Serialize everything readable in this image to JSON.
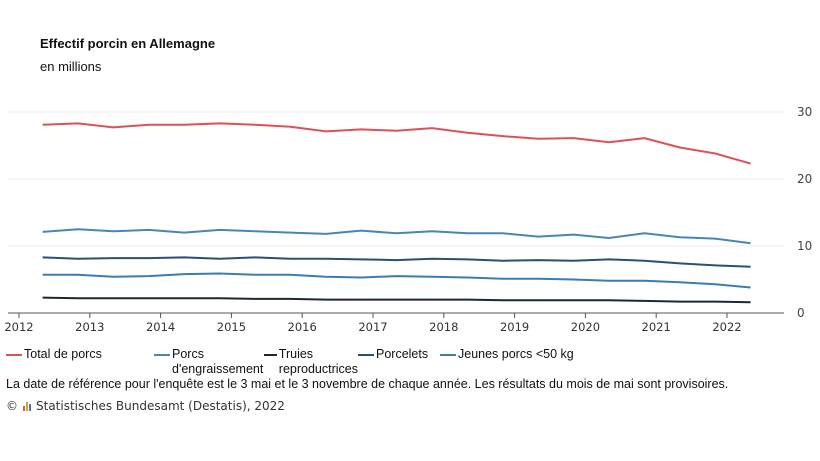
{
  "chart_data": {
    "type": "line",
    "title": "Effectif porcin en Allemagne",
    "subtitle": "en millions",
    "x": [
      "2012-05",
      "2012-11",
      "2013-05",
      "2013-11",
      "2014-05",
      "2014-11",
      "2015-05",
      "2015-11",
      "2016-05",
      "2016-11",
      "2017-05",
      "2017-11",
      "2018-05",
      "2018-11",
      "2019-05",
      "2019-11",
      "2020-05",
      "2020-11",
      "2021-05",
      "2021-11",
      "2022-05"
    ],
    "xticks": [
      "2012",
      "2013",
      "2014",
      "2015",
      "2016",
      "2017",
      "2018",
      "2019",
      "2020",
      "2021",
      "2022"
    ],
    "yticks": [
      "0",
      "10",
      "20",
      "30"
    ],
    "ylim": [
      0,
      30
    ],
    "grid": true,
    "y_axis_position": "right",
    "legend_position": "bottom",
    "series": [
      {
        "name": "Total de porcs",
        "color": "#d9545a",
        "values": [
          28.1,
          28.3,
          27.7,
          28.1,
          28.1,
          28.3,
          28.1,
          27.8,
          27.1,
          27.4,
          27.2,
          27.6,
          26.9,
          26.4,
          26.0,
          26.1,
          25.5,
          26.1,
          24.7,
          23.8,
          22.3
        ]
      },
      {
        "name": "Porcs d'engraissement",
        "color": "#4a86b4",
        "values": [
          12.1,
          12.5,
          12.2,
          12.4,
          12.0,
          12.4,
          12.2,
          12.0,
          11.8,
          12.3,
          11.9,
          12.2,
          11.9,
          11.9,
          11.4,
          11.7,
          11.2,
          11.9,
          11.3,
          11.1,
          10.4
        ]
      },
      {
        "name": "Truies reproductrices",
        "color": "#1c2833",
        "values": [
          2.3,
          2.2,
          2.2,
          2.2,
          2.2,
          2.2,
          2.1,
          2.1,
          2.0,
          2.0,
          2.0,
          2.0,
          2.0,
          1.9,
          1.9,
          1.9,
          1.9,
          1.8,
          1.7,
          1.7,
          1.6
        ]
      },
      {
        "name": "Porcelets",
        "color": "#2c4f73",
        "values": [
          8.3,
          8.1,
          8.2,
          8.2,
          8.3,
          8.1,
          8.3,
          8.1,
          8.1,
          8.0,
          7.9,
          8.1,
          8.0,
          7.8,
          7.9,
          7.8,
          8.0,
          7.8,
          7.4,
          7.1,
          6.9
        ]
      },
      {
        "name": "Jeunes porcs <50 kg",
        "color": "#3c7db0",
        "values": [
          5.7,
          5.7,
          5.4,
          5.5,
          5.8,
          5.9,
          5.7,
          5.7,
          5.4,
          5.3,
          5.5,
          5.4,
          5.3,
          5.1,
          5.1,
          5.0,
          4.8,
          4.8,
          4.6,
          4.3,
          3.8
        ]
      }
    ]
  },
  "legend": [
    {
      "line1": "Total de porcs",
      "line2": ""
    },
    {
      "line1": "Porcs",
      "line2": "d'engraissement"
    },
    {
      "line1": "Truies",
      "line2": "reproductrices"
    },
    {
      "line1": "Porcelets",
      "line2": ""
    },
    {
      "line1": "Jeunes porcs <50 kg",
      "line2": ""
    }
  ],
  "note": "La date de référence pour l'enquête est le 3 mai et le 3 novembre de chaque année. Les résultats du mois de mai sont provisoires.",
  "source": {
    "copyright": "©",
    "text": "Statistisches Bundesamt (Destatis), 2022",
    "logo_colors": [
      "#d9545a",
      "#e0a030",
      "#3c7db0"
    ]
  }
}
